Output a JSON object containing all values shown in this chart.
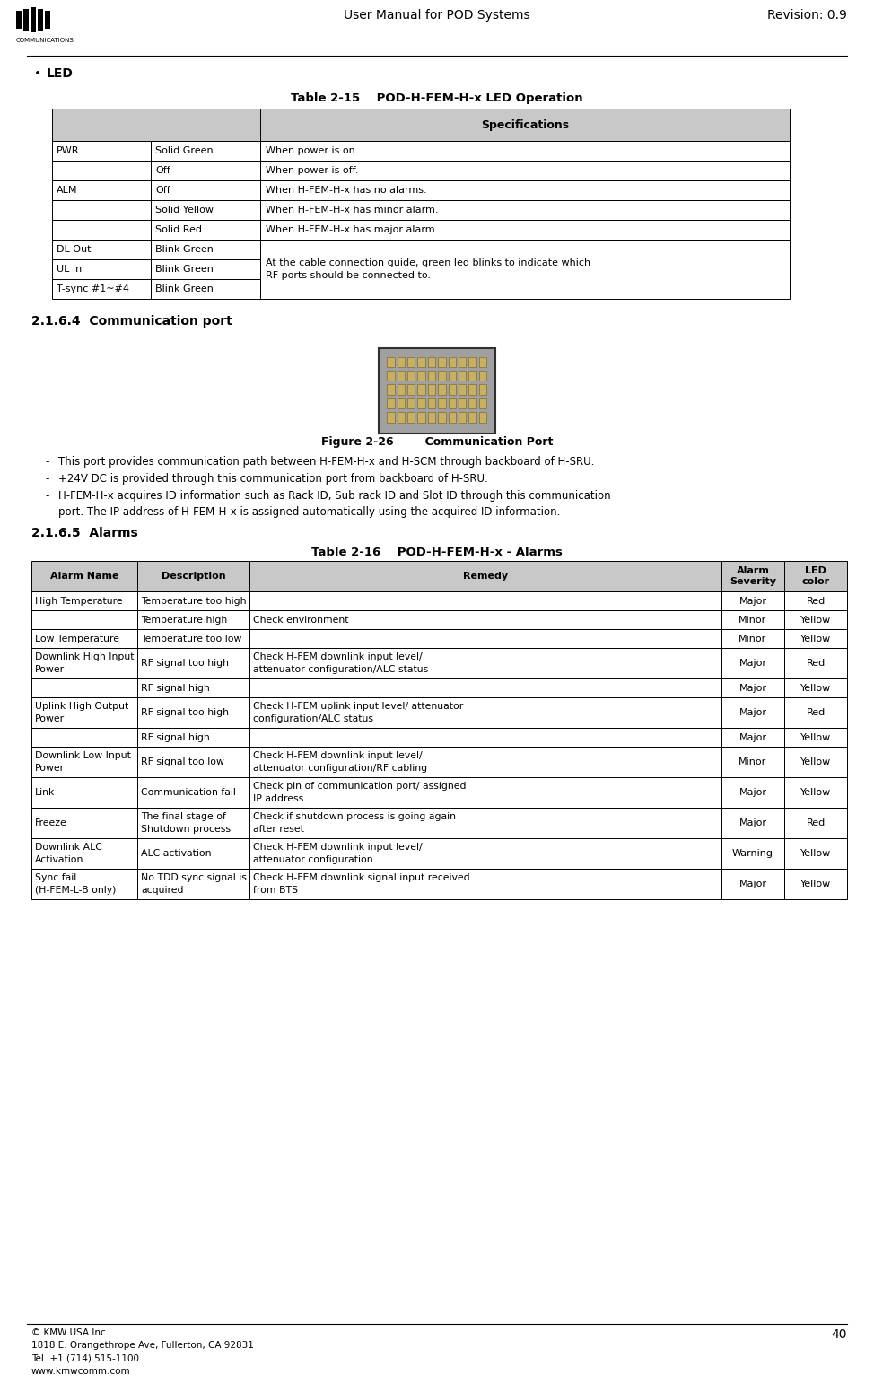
{
  "page_title": "User Manual for POD Systems",
  "page_revision": "Revision: 0.9",
  "page_number": "40",
  "bullet_led": "LED",
  "table1_title": "Table 2-15    POD-H-FEM-H-x LED Operation",
  "section_216_4": "2.1.6.4  Communication port",
  "fig_caption": "Figure 2-26        Communication Port",
  "bullets_comm": [
    "This port provides communication path between H-FEM-H-x and H-SCM through backboard of H-SRU.",
    "+24V DC is provided through this communication port from backboard of H-SRU.",
    "H-FEM-H-x acquires ID information such as Rack ID, Sub rack ID and Slot ID through this communication\nport. The IP address of H-FEM-H-x is assigned automatically using the acquired ID information."
  ],
  "section_216_5": "2.1.6.5  Alarms",
  "table2_title": "Table 2-16    POD-H-FEM-H-x - Alarms",
  "table2_header": [
    "Alarm Name",
    "Description",
    "Remedy",
    "Alarm\nSeverity",
    "LED\ncolor"
  ],
  "table2_rows": [
    [
      "High Temperature",
      "Temperature too high",
      "",
      "Major",
      "Red"
    ],
    [
      "",
      "Temperature high",
      "Check environment",
      "Minor",
      "Yellow"
    ],
    [
      "Low Temperature",
      "Temperature too low",
      "",
      "Minor",
      "Yellow"
    ],
    [
      "Downlink High Input\nPower",
      "RF signal too high",
      "Check H-FEM downlink input level/\nattenuator configuration/ALC status",
      "Major",
      "Red"
    ],
    [
      "",
      "RF signal high",
      "",
      "Major",
      "Yellow"
    ],
    [
      "Uplink High Output\nPower",
      "RF signal too high",
      "Check H-FEM uplink input level/ attenuator\nconfiguration/ALC status",
      "Major",
      "Red"
    ],
    [
      "",
      "RF signal high",
      "",
      "Major",
      "Yellow"
    ],
    [
      "Downlink Low Input\nPower",
      "RF signal too low",
      "Check H-FEM downlink input level/\nattenuator configuration/RF cabling",
      "Minor",
      "Yellow"
    ],
    [
      "Link",
      "Communication fail",
      "Check pin of communication port/ assigned\nIP address",
      "Major",
      "Yellow"
    ],
    [
      "Freeze",
      "The final stage of\nShutdown process",
      "Check if shutdown process is going again\nafter reset",
      "Major",
      "Red"
    ],
    [
      "Downlink ALC\nActivation",
      "ALC activation",
      "Check H-FEM downlink input level/\nattenuator configuration",
      "Warning",
      "Yellow"
    ],
    [
      "Sync fail\n(H-FEM-L-B only)",
      "No TDD sync signal is\nacquired",
      "Check H-FEM downlink signal input received\nfrom BTS",
      "Major",
      "Yellow"
    ]
  ],
  "footer_left": "© KMW USA Inc.\n1818 E. Orangethrope Ave, Fullerton, CA 92831\nTel. +1 (714) 515-1100\nwww.kmwcomm.com",
  "header_bg": "#c8c8c8",
  "table_border": "#000000",
  "bg_color": "#ffffff",
  "spec_merged": "At the cable connection guide, green led blinks to indicate which\nRF ports should be connected to."
}
